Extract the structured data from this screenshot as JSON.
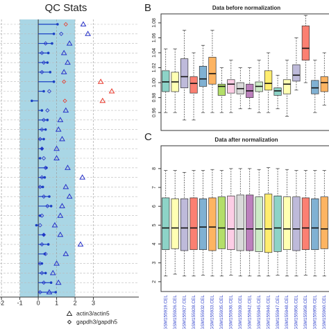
{
  "chart_data": [
    {
      "type": "qc",
      "title": "QC Stats",
      "xlim": [
        -2.08,
        5.47
      ],
      "xticks": [
        -2,
        -1,
        0,
        1,
        2,
        3
      ],
      "band": [
        -1,
        2
      ],
      "series": [
        {
          "marker": "lollipop",
          "color": "#1a3fc4",
          "values": [
            1.05,
            0.85,
            0.75,
            0.55,
            0.5,
            0.65,
            0.85,
            0.3,
            -0.35,
            0.2,
            0.5,
            0.4,
            0.3,
            0.2,
            0.1,
            0.45,
            0.35,
            0.25,
            0.6,
            0.7,
            0.1,
            -0.1,
            0.3,
            0.55,
            0.35,
            0.2,
            0.4,
            0.7,
            0.95
          ]
        },
        {
          "name": "actin3/actin5",
          "marker": "triangle",
          "color": "#2630c8",
          "limit": 3,
          "limit_color": "#e8392c",
          "values": [
            2.45,
            2.7,
            1.7,
            1.4,
            1.6,
            1.4,
            3.4,
            4.0,
            3.5,
            1.5,
            1.2,
            1.1,
            1.3,
            1.0,
            1.0,
            1.6,
            2.4,
            1.5,
            1.7,
            1.3,
            1.2,
            0.9,
            1.2,
            2.3,
            1.5,
            1.0,
            0.8,
            1.1,
            0.6
          ]
        },
        {
          "name": "gapdh3/gapdh5",
          "marker": "diamond",
          "color": "#2630c8",
          "limit": 1.3,
          "limit_color": "#e8392c",
          "values": [
            1.5,
            1.25,
            0.4,
            0.2,
            0.3,
            0.2,
            1.4,
            0.6,
            1.45,
            0.5,
            0.3,
            0.2,
            0.1,
            0.2,
            0.3,
            0.4,
            0.2,
            0.1,
            0.3,
            0.5,
            0.2,
            0.1,
            0.3,
            0.2,
            0.4,
            0.1,
            0.2,
            0.3,
            0.1
          ]
        }
      ]
    },
    {
      "type": "boxplot",
      "panel_label": "B",
      "title": "Data before normalization",
      "ylim": [
        0.936,
        1.092
      ],
      "yticks": [
        0.96,
        0.98,
        {
          "value": 1,
          "label": "1.00"
        },
        1.02,
        1.04,
        1.06,
        1.08
      ],
      "colors": [
        "#8DD3C7",
        "#FFFFB3",
        "#BEBADA",
        "#FB8072",
        "#80B1D3",
        "#FDB462",
        "#B3DE69",
        "#FCCDE5",
        "#D9D9D9",
        "#BC80BD",
        "#CCEBC5",
        "#FFED6F"
      ],
      "boxes": [
        [
          0.96,
          0.988,
          1.001,
          1.016,
          1.045
        ],
        [
          0.96,
          0.988,
          1.001,
          1.014,
          1.045
        ],
        [
          0.95,
          0.993,
          1.008,
          1.032,
          1.07
        ],
        [
          0.95,
          0.986,
          0.999,
          1.008,
          1.04
        ],
        [
          0.96,
          0.995,
          1.005,
          1.022,
          1.05
        ],
        [
          0.96,
          0.998,
          1.012,
          1.034,
          1.07
        ],
        [
          0.96,
          0.983,
          0.995,
          0.998,
          1.02
        ],
        [
          0.96,
          0.986,
          0.998,
          1.004,
          1.03
        ],
        [
          0.965,
          0.985,
          0.992,
          1.0,
          1.02
        ],
        [
          0.965,
          0.98,
          0.989,
          0.998,
          1.02
        ],
        [
          0.96,
          0.988,
          0.995,
          1.001,
          1.03
        ],
        [
          0.96,
          0.99,
          0.999,
          1.016,
          1.04
        ],
        [
          0.965,
          0.983,
          0.989,
          0.993,
          1.01
        ],
        [
          0.955,
          0.985,
          0.998,
          1.004,
          1.03
        ],
        [
          0.99,
          1.002,
          1.01,
          1.024,
          1.06
        ],
        [
          1.0,
          1.03,
          1.046,
          1.076,
          1.09
        ],
        [
          0.96,
          0.985,
          0.993,
          1.003,
          1.03
        ],
        [
          0.97,
          0.988,
          1.0,
          1.008,
          1.04
        ]
      ]
    },
    {
      "type": "boxplot",
      "panel_label": "C",
      "title": "Data after normalization",
      "ylim": [
        1.48,
        9.21
      ],
      "yticks": [
        2,
        3,
        4,
        5,
        6,
        7,
        8
      ],
      "colors": [
        "#8DD3C7",
        "#FFFFB3",
        "#BEBADA",
        "#FB8072",
        "#80B1D3",
        "#FDB462",
        "#B3DE69",
        "#FCCDE5",
        "#D9D9D9",
        "#BC80BD",
        "#CCEBC5",
        "#FFED6F"
      ],
      "categories": [
        "GSM155919.CEL",
        "GSM155926.CEL",
        "GSM155927.CEL",
        "GSM155928.CEL",
        "GSM155932.CEL",
        "GSM155933.CEL",
        "GSM155935.CEL",
        "GSM155936.CEL",
        "GSM155939.CEL",
        "GSM155942.CEL",
        "GSM155945.CEL",
        "GSM155946.CEL",
        "GSM155947.CEL",
        "GSM155948.CEL",
        "GSM155956.CEL",
        "GSM155958.CEL",
        "GSM155959.CEL",
        "GSM155960.CEL"
      ],
      "boxes": [
        [
          2.3,
          3.7,
          4.85,
          6.45,
          7.9
        ],
        [
          2.4,
          3.75,
          4.85,
          6.4,
          7.9
        ],
        [
          2.3,
          3.65,
          4.85,
          6.4,
          7.8
        ],
        [
          2.3,
          3.7,
          4.85,
          6.45,
          7.9
        ],
        [
          2.35,
          3.7,
          4.9,
          6.4,
          7.9
        ],
        [
          2.3,
          3.65,
          4.9,
          6.45,
          7.95
        ],
        [
          2.3,
          3.75,
          4.85,
          6.5,
          7.9
        ],
        [
          2.35,
          3.7,
          4.8,
          6.55,
          8.0
        ],
        [
          2.3,
          3.65,
          4.8,
          6.6,
          8.0
        ],
        [
          2.3,
          3.65,
          4.8,
          6.6,
          8.0
        ],
        [
          2.3,
          3.6,
          4.8,
          6.5,
          7.95
        ],
        [
          2.3,
          3.55,
          4.8,
          6.65,
          8.05
        ],
        [
          2.35,
          3.6,
          4.85,
          6.55,
          8.0
        ],
        [
          2.3,
          3.7,
          4.8,
          6.5,
          7.95
        ],
        [
          2.3,
          3.65,
          4.8,
          6.5,
          7.9
        ],
        [
          2.35,
          3.7,
          4.85,
          6.45,
          7.9
        ],
        [
          2.3,
          3.7,
          4.85,
          6.4,
          7.9
        ],
        [
          2.3,
          3.75,
          4.8,
          6.5,
          7.9
        ]
      ]
    }
  ]
}
